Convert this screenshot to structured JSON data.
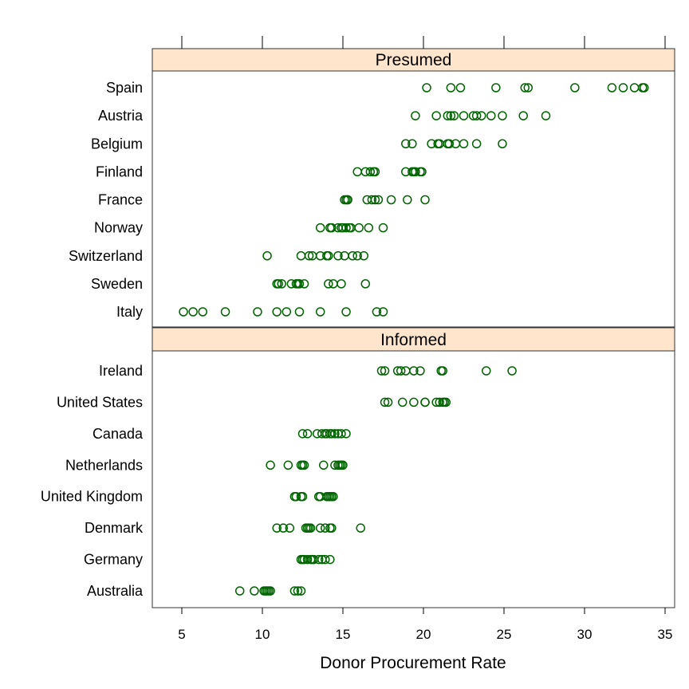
{
  "chart_data": {
    "type": "scatter",
    "subtype": "dotplot",
    "xlabel": "Donor Procurement Rate",
    "xlim": [
      3.2,
      35.6
    ],
    "xticks": [
      5,
      10,
      15,
      20,
      25,
      30,
      35
    ],
    "point_color": "#006400",
    "strip_color": "#FFE5CC",
    "panels": [
      {
        "name": "Presumed",
        "rows": [
          {
            "country": "Spain",
            "values": [
              20.2,
              21.7,
              22.3,
              24.5,
              26.3,
              26.5,
              29.4,
              31.7,
              32.4,
              33.1,
              33.6,
              33.7
            ]
          },
          {
            "country": "Austria",
            "values": [
              19.5,
              20.8,
              21.5,
              21.7,
              21.9,
              22.5,
              23.1,
              23.3,
              23.6,
              24.2,
              24.9,
              26.2,
              27.6
            ]
          },
          {
            "country": "Belgium",
            "values": [
              18.9,
              19.3,
              20.5,
              20.9,
              21.0,
              21.5,
              21.6,
              22.0,
              22.5,
              23.3,
              24.9
            ]
          },
          {
            "country": "Finland",
            "values": [
              15.9,
              16.4,
              16.7,
              16.9,
              17.0,
              18.9,
              19.3,
              19.4,
              19.5,
              19.8,
              19.9
            ]
          },
          {
            "country": "France",
            "values": [
              15.1,
              15.2,
              15.3,
              15.3,
              16.5,
              16.8,
              17.0,
              17.2,
              18.0,
              19.0,
              20.1
            ]
          },
          {
            "country": "Norway",
            "values": [
              13.6,
              14.2,
              14.3,
              14.7,
              14.9,
              15.0,
              15.2,
              15.4,
              15.5,
              16.0,
              16.6,
              17.5
            ]
          },
          {
            "country": "Switzerland",
            "values": [
              10.3,
              12.4,
              12.9,
              13.1,
              13.6,
              14.0,
              14.1,
              14.7,
              15.1,
              15.6,
              15.9,
              16.3
            ]
          },
          {
            "country": "Sweden",
            "values": [
              10.9,
              11.0,
              11.2,
              11.8,
              12.1,
              12.2,
              12.3,
              12.6,
              14.1,
              14.4,
              14.9,
              16.4
            ]
          },
          {
            "country": "Italy",
            "values": [
              5.1,
              5.7,
              6.3,
              7.7,
              9.7,
              10.9,
              11.5,
              12.3,
              13.6,
              15.2,
              17.1,
              17.5
            ]
          }
        ]
      },
      {
        "name": "Informed",
        "rows": [
          {
            "country": "Ireland",
            "values": [
              17.4,
              17.6,
              18.4,
              18.6,
              18.9,
              19.4,
              19.8,
              21.1,
              21.2,
              23.9,
              25.5
            ]
          },
          {
            "country": "United States",
            "values": [
              17.6,
              17.8,
              18.7,
              19.4,
              20.1,
              20.1,
              20.8,
              21.0,
              21.2,
              21.3,
              21.4
            ]
          },
          {
            "country": "Canada",
            "values": [
              12.5,
              12.8,
              13.4,
              13.7,
              13.9,
              14.0,
              14.2,
              14.3,
              14.5,
              14.7,
              14.9,
              15.2
            ]
          },
          {
            "country": "Netherlands",
            "values": [
              10.5,
              11.6,
              12.4,
              12.5,
              12.6,
              13.8,
              14.5,
              14.7,
              14.8,
              14.9,
              15.0
            ]
          },
          {
            "country": "United Kingdom",
            "values": [
              12.0,
              12.1,
              12.4,
              12.5,
              13.5,
              13.6,
              14.0,
              14.1,
              14.2,
              14.3,
              14.4
            ]
          },
          {
            "country": "Denmark",
            "values": [
              10.9,
              11.3,
              11.7,
              12.7,
              12.8,
              12.9,
              13.0,
              13.6,
              13.9,
              14.2,
              14.3,
              16.1
            ]
          },
          {
            "country": "Germany",
            "values": [
              12.4,
              12.5,
              12.6,
              12.8,
              13.0,
              13.1,
              13.2,
              13.5,
              13.7,
              13.9,
              14.2
            ]
          },
          {
            "country": "Australia",
            "values": [
              8.6,
              9.5,
              10.1,
              10.2,
              10.3,
              10.4,
              10.5,
              12.0,
              12.2,
              12.4
            ]
          }
        ]
      }
    ]
  }
}
